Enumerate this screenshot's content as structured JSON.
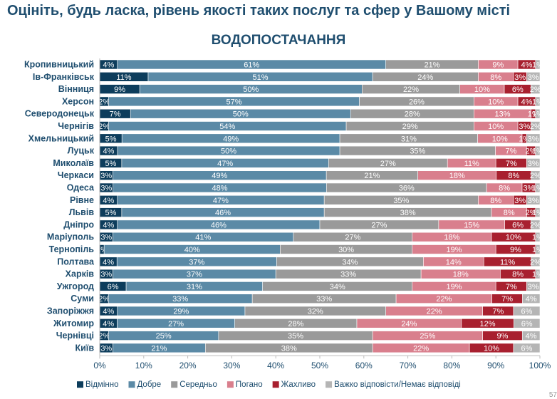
{
  "title": "Оцініть, будь ласка, рівень якості таких послуг та сфер у Вашому місті",
  "subtitle": "ВОДОПОСТАЧАННЯ",
  "page_number": "57",
  "chart_data": {
    "type": "bar",
    "orientation": "horizontal",
    "stacked": true,
    "categories": [
      "Кропивницький",
      "Ів-Франківськ",
      "Вінниця",
      "Херсон",
      "Северодонецьк",
      "Чернігів",
      "Хмельницький",
      "Луцьк",
      "Миколаїв",
      "Черкаси",
      "Одеса",
      "Рівне",
      "Львів",
      "Дніпро",
      "Маріуполь",
      "Тернопіль",
      "Полтава",
      "Харків",
      "Ужгород",
      "Суми",
      "Запоріжжя",
      "Житомир",
      "Чернівці",
      "Київ"
    ],
    "series": [
      {
        "name": "Відмінно",
        "color": "#0d3d5c",
        "values": [
          4,
          11,
          9,
          2,
          7,
          2,
          5,
          4,
          5,
          3,
          3,
          4,
          5,
          4,
          3,
          1,
          4,
          3,
          6,
          2,
          4,
          4,
          2,
          3
        ]
      },
      {
        "name": "Добре",
        "color": "#5b8aa6",
        "values": [
          61,
          51,
          50,
          57,
          50,
          54,
          49,
          50,
          47,
          49,
          48,
          47,
          46,
          46,
          41,
          40,
          37,
          37,
          31,
          33,
          29,
          27,
          25,
          21
        ]
      },
      {
        "name": "Середньо",
        "color": "#9a9a9a",
        "values": [
          21,
          24,
          22,
          26,
          28,
          29,
          31,
          35,
          27,
          21,
          36,
          35,
          38,
          27,
          27,
          30,
          34,
          33,
          34,
          33,
          32,
          28,
          35,
          38
        ]
      },
      {
        "name": "Погано",
        "color": "#d97f8d",
        "values": [
          9,
          8,
          10,
          10,
          13,
          10,
          10,
          7,
          11,
          18,
          8,
          8,
          8,
          15,
          18,
          19,
          14,
          18,
          19,
          22,
          22,
          24,
          25,
          22
        ]
      },
      {
        "name": "Жахливо",
        "color": "#a8202f",
        "values": [
          4,
          3,
          6,
          4,
          1,
          3,
          1,
          2,
          7,
          8,
          3,
          3,
          2,
          6,
          10,
          9,
          11,
          8,
          7,
          7,
          7,
          12,
          9,
          10
        ]
      },
      {
        "name": "Важко відповісти/Немає відповіді",
        "color": "#b5b5b5",
        "values": [
          1,
          3,
          2,
          1,
          1,
          2,
          3,
          1,
          3,
          2,
          1,
          3,
          1,
          2,
          1,
          1,
          2,
          1,
          3,
          4,
          6,
          6,
          4,
          6
        ]
      }
    ],
    "labels": [
      [
        "4%",
        "61%",
        "21%",
        "9%",
        "4%",
        "1%"
      ],
      [
        "11%",
        "51%",
        "24%",
        "8%",
        "3%",
        "3%"
      ],
      [
        "9%",
        "50%",
        "22%",
        "10%",
        "6%",
        "2%"
      ],
      [
        "2%",
        "57%",
        "26%",
        "10%",
        "4%",
        "1%"
      ],
      [
        "7%",
        "50%",
        "28%",
        "13%",
        "1%",
        "1%"
      ],
      [
        "2%",
        "54%",
        "29%",
        "10%",
        "3%",
        "2%"
      ],
      [
        "5%",
        "49%",
        "31%",
        "10%",
        "1%",
        "3%"
      ],
      [
        "4%",
        "50%",
        "35%",
        "7%",
        "2%",
        "1%"
      ],
      [
        "5%",
        "47%",
        "27%",
        "11%",
        "7%",
        "3%"
      ],
      [
        "3%",
        "49%",
        "21%",
        "18%",
        "8%",
        "2%"
      ],
      [
        "3%",
        "48%",
        "36%",
        "8%",
        "3%",
        "1%"
      ],
      [
        "4%",
        "47%",
        "35%",
        "8%",
        "3%",
        "3%"
      ],
      [
        "5%",
        "46%",
        "38%",
        "8%",
        "2%",
        "1%"
      ],
      [
        "4%",
        "46%",
        "27%",
        "15%",
        "6%",
        "2%"
      ],
      [
        "3%",
        "41%",
        "27%",
        "18%",
        "10%",
        "1%"
      ],
      [
        "1%",
        "40%",
        "30%",
        "19%",
        "9%",
        "1%"
      ],
      [
        "4%",
        "37%",
        "34%",
        "14%",
        "11%",
        "2%"
      ],
      [
        "3%",
        "37%",
        "33%",
        "18%",
        "8%",
        "1%"
      ],
      [
        "6%",
        "31%",
        "34%",
        "19%",
        "7%",
        "3%"
      ],
      [
        "2%",
        "33%",
        "33%",
        "22%",
        "7%",
        "4%"
      ],
      [
        "4%",
        "29%",
        "32%",
        "22%",
        "7%",
        "6%"
      ],
      [
        "4%",
        "27%",
        "28%",
        "24%",
        "12%",
        "6%"
      ],
      [
        "2%",
        "25%",
        "35%",
        "25%",
        "9%",
        "4%"
      ],
      [
        "3%",
        "21%",
        "38%",
        "22%",
        "10%",
        "6%"
      ]
    ],
    "xticks": [
      "0%",
      "10%",
      "20%",
      "30%",
      "40%",
      "50%",
      "60%",
      "70%",
      "80%",
      "90%",
      "100%"
    ],
    "xlim": [
      0,
      100
    ],
    "legend_position": "bottom",
    "grid": false
  }
}
